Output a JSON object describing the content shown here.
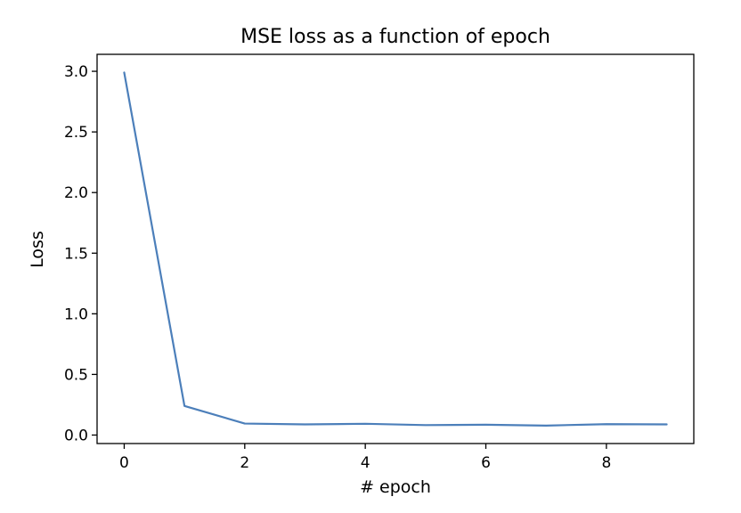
{
  "chart_data": {
    "type": "line",
    "title": "MSE loss as a function of epoch",
    "xlabel": "# epoch",
    "ylabel": "Loss",
    "x": [
      0,
      1,
      2,
      3,
      4,
      5,
      6,
      7,
      8,
      9
    ],
    "series": [
      {
        "values": [
          2.99,
          0.24,
          0.095,
          0.088,
          0.093,
          0.082,
          0.085,
          0.078,
          0.09,
          0.088
        ],
        "color": "#4c7fba"
      }
    ],
    "xlim": [
      -0.45,
      9.45
    ],
    "ylim": [
      -0.07,
      3.14
    ],
    "xticks": [
      0,
      2,
      4,
      6,
      8
    ],
    "xtick_labels": [
      "0",
      "2",
      "4",
      "6",
      "8"
    ],
    "yticks": [
      0,
      0.5,
      1,
      1.5,
      2,
      2.5,
      3
    ],
    "ytick_labels": [
      "0.0",
      "0.5",
      "1.0",
      "1.5",
      "2.0",
      "2.5",
      "3.0"
    ],
    "grid": false,
    "legend": "none"
  }
}
